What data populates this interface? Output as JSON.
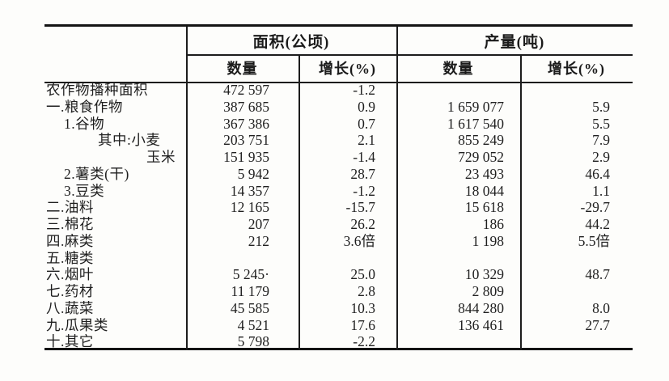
{
  "table": {
    "columns": {
      "area_group_title": "面积(公顷)",
      "output_group_title": "产量(吨)",
      "qty_label": "数量",
      "growth_label": "增长(%)"
    },
    "rows": [
      {
        "label": "农作物播种面积",
        "indent": 0,
        "area_qty": "472 597",
        "area_growth": "-1.2",
        "output_qty": "",
        "output_growth": ""
      },
      {
        "label": "一.粮食作物",
        "indent": 0,
        "area_qty": "387 685",
        "area_growth": "0.9",
        "output_qty": "1 659 077",
        "output_growth": "5.9"
      },
      {
        "label": "1.谷物",
        "indent": 1,
        "area_qty": "367 386",
        "area_growth": "0.7",
        "output_qty": "1 617 540",
        "output_growth": "5.5"
      },
      {
        "label": "其中:小麦",
        "indent": 2,
        "area_qty": "203 751",
        "area_growth": "2.1",
        "output_qty": "855 249",
        "output_growth": "7.9"
      },
      {
        "label": "玉米",
        "indent": 3,
        "area_qty": "151 935",
        "area_growth": "-1.4",
        "output_qty": "729 052",
        "output_growth": "2.9"
      },
      {
        "label": "2.薯类(干)",
        "indent": 1,
        "area_qty": "5 942",
        "area_growth": "28.7",
        "output_qty": "23 493",
        "output_growth": "46.4"
      },
      {
        "label": "3.豆类",
        "indent": 1,
        "area_qty": "14 357",
        "area_growth": "-1.2",
        "output_qty": "18 044",
        "output_growth": "1.1"
      },
      {
        "label": "二.油料",
        "indent": 0,
        "area_qty": "12 165",
        "area_growth": "-15.7",
        "output_qty": "15 618",
        "output_growth": "-29.7"
      },
      {
        "label": "三.棉花",
        "indent": 0,
        "area_qty": "207",
        "area_growth": "26.2",
        "output_qty": "186",
        "output_growth": "44.2"
      },
      {
        "label": "四.麻类",
        "indent": 0,
        "area_qty": "212",
        "area_growth": "3.6倍",
        "output_qty": "1 198",
        "output_growth": "5.5倍"
      },
      {
        "label": "五.糖类",
        "indent": 0,
        "area_qty": "",
        "area_growth": "",
        "output_qty": "",
        "output_growth": ""
      },
      {
        "label": "六.烟叶",
        "indent": 0,
        "area_qty": "5 245·",
        "area_growth": "25.0",
        "output_qty": "10 329",
        "output_growth": "48.7"
      },
      {
        "label": "七.药材",
        "indent": 0,
        "area_qty": "11 179",
        "area_growth": "2.8",
        "output_qty": "2 809",
        "output_growth": ""
      },
      {
        "label": "八.蔬菜",
        "indent": 0,
        "area_qty": "45 585",
        "area_growth": "10.3",
        "output_qty": "844 280",
        "output_growth": "8.0"
      },
      {
        "label": "九.瓜果类",
        "indent": 0,
        "area_qty": "4 521",
        "area_growth": "17.6",
        "output_qty": "136 461",
        "output_growth": "27.7"
      },
      {
        "label": "十.其它",
        "indent": 0,
        "area_qty": "5 798",
        "area_growth": "-2.2",
        "output_qty": "",
        "output_growth": ""
      }
    ]
  }
}
